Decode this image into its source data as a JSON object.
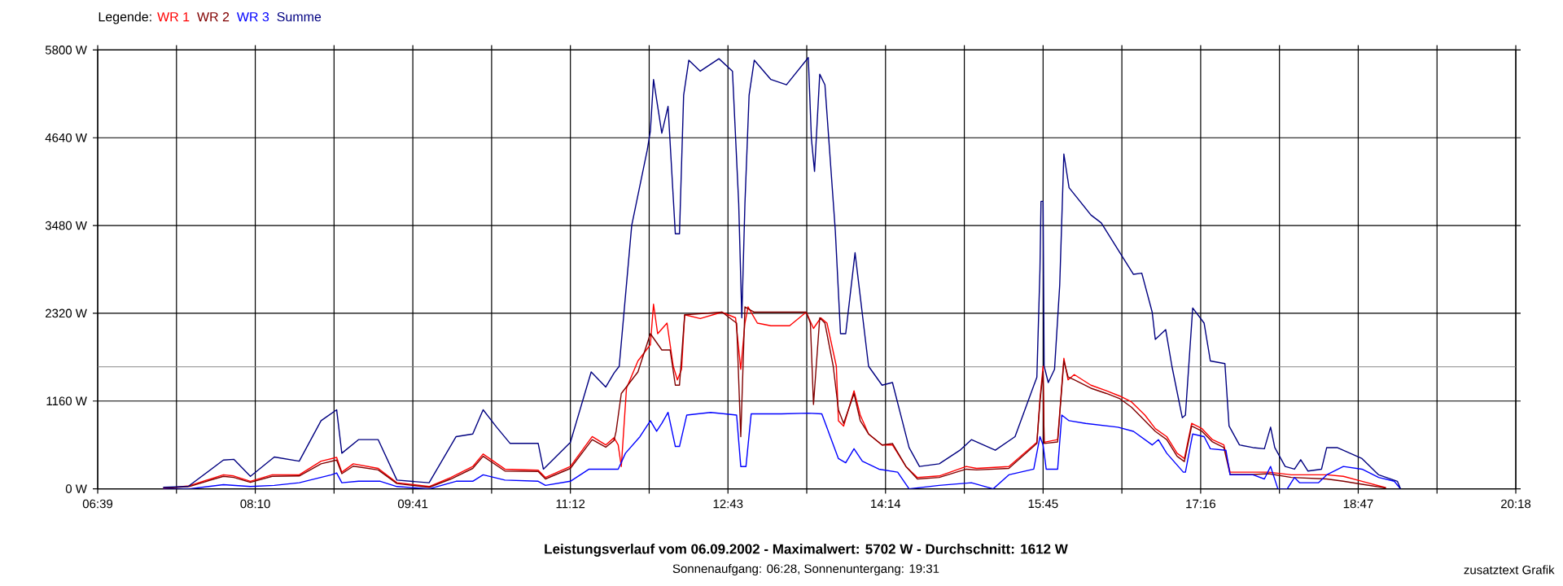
{
  "chart_data": {
    "type": "line",
    "title": "Leistungsverlauf vom 06.09.2002 - Maximalwert: 5702 W - Durchschnitt: 1612 W",
    "subtitle": "Sonnenaufgang: 06:28, Sonnenuntergang: 19:31",
    "annotations": [
      "zusatztext Grafik"
    ],
    "legend_title": "Legende:",
    "legend": "top left",
    "grid": true,
    "marker": "none",
    "line_style": "solid",
    "xlim": [
      6.65,
      20.3
    ],
    "ylim": [
      0,
      5800
    ],
    "xticks": [
      {
        "value": 6.65,
        "label": "06:39"
      },
      {
        "value": 7.4083,
        "label": null
      },
      {
        "value": 8.1667,
        "label": "08:10"
      },
      {
        "value": 8.925,
        "label": null
      },
      {
        "value": 9.6833,
        "label": "09:41"
      },
      {
        "value": 10.4417,
        "label": null
      },
      {
        "value": 11.2,
        "label": "11:12"
      },
      {
        "value": 11.9583,
        "label": null
      },
      {
        "value": 12.7167,
        "label": "12:43"
      },
      {
        "value": 13.475,
        "label": null
      },
      {
        "value": 14.2333,
        "label": "14:14"
      },
      {
        "value": 14.9917,
        "label": null
      },
      {
        "value": 15.75,
        "label": "15:45"
      },
      {
        "value": 16.5083,
        "label": null
      },
      {
        "value": 17.2667,
        "label": "17:16"
      },
      {
        "value": 18.025,
        "label": null
      },
      {
        "value": 18.7833,
        "label": "18:47"
      },
      {
        "value": 19.5417,
        "label": null
      },
      {
        "value": 20.3,
        "label": "20:18"
      }
    ],
    "yticks": [
      {
        "value": 0,
        "label": "0 W"
      },
      {
        "value": 1160,
        "label": "1160 W"
      },
      {
        "value": 2320,
        "label": "2320 W"
      },
      {
        "value": 3480,
        "label": "3480 W"
      },
      {
        "value": 4640,
        "label": "4640 W"
      },
      {
        "value": 5800,
        "label": "5800 W"
      }
    ],
    "ref_lines": [
      {
        "axis": "y",
        "value": 1612,
        "color": "#808080"
      }
    ],
    "series": [
      {
        "name": "WR 1",
        "color": "#ff0000",
        "x": [
          7.28,
          7.53,
          7.86,
          7.96,
          8.12,
          8.33,
          8.59,
          8.8,
          8.95,
          9.0,
          9.11,
          9.35,
          9.53,
          9.84,
          10.05,
          10.26,
          10.36,
          10.57,
          10.89,
          10.96,
          11.2,
          11.41,
          11.54,
          11.62,
          11.66,
          11.69,
          11.74,
          11.85,
          11.97,
          12.0,
          12.04,
          12.13,
          12.19,
          12.23,
          12.27,
          12.3,
          12.45,
          12.66,
          12.79,
          12.84,
          12.88,
          12.91,
          13.0,
          13.13,
          13.31,
          13.47,
          13.54,
          13.61,
          13.67,
          13.76,
          13.78,
          13.83,
          13.93,
          13.99,
          14.07,
          14.2,
          14.3,
          14.43,
          14.54,
          14.75,
          15.01,
          15.11,
          15.42,
          15.69,
          15.72,
          15.75,
          15.76,
          15.89,
          15.95,
          15.99,
          16.05,
          16.21,
          16.36,
          16.49,
          16.6,
          16.73,
          16.83,
          16.94,
          17.04,
          17.11,
          17.18,
          17.28,
          17.38,
          17.49,
          17.55,
          17.77,
          17.92,
          18.14,
          18.48,
          18.64,
          18.82,
          19.05
        ],
        "values": [
          5,
          40,
          185,
          170,
          100,
          185,
          185,
          365,
          415,
          220,
          330,
          270,
          80,
          30,
          150,
          295,
          460,
          260,
          245,
          150,
          295,
          690,
          580,
          675,
          580,
          295,
          1330,
          1690,
          1905,
          2440,
          2050,
          2190,
          1620,
          1440,
          1580,
          2300,
          2250,
          2335,
          2260,
          1580,
          2190,
          2405,
          2190,
          2155,
          2155,
          2335,
          2120,
          2260,
          2190,
          1620,
          900,
          830,
          1295,
          975,
          725,
          580,
          580,
          295,
          150,
          170,
          295,
          270,
          295,
          615,
          1190,
          1620,
          615,
          650,
          1725,
          1440,
          1510,
          1370,
          1295,
          1225,
          1150,
          975,
          795,
          690,
          470,
          400,
          865,
          795,
          650,
          580,
          220,
          220,
          220,
          185,
          185,
          165,
          100,
          15
        ]
      },
      {
        "name": "WR 2",
        "color": "#800000",
        "x": [
          7.28,
          7.53,
          7.86,
          7.96,
          8.12,
          8.33,
          8.59,
          8.8,
          8.95,
          9.0,
          9.11,
          9.35,
          9.53,
          9.84,
          10.05,
          10.26,
          10.36,
          10.57,
          10.89,
          10.96,
          11.2,
          11.41,
          11.54,
          11.62,
          11.64,
          11.69,
          11.85,
          11.97,
          12.08,
          12.16,
          12.21,
          12.25,
          12.3,
          12.66,
          12.8,
          12.84,
          12.88,
          12.97,
          13.23,
          13.47,
          13.51,
          13.54,
          13.6,
          13.65,
          13.73,
          13.78,
          13.83,
          13.93,
          13.99,
          14.07,
          14.2,
          14.3,
          14.43,
          14.54,
          14.75,
          15.01,
          15.11,
          15.42,
          15.69,
          15.72,
          15.75,
          15.76,
          15.89,
          15.95,
          15.99,
          16.05,
          16.21,
          16.36,
          16.49,
          16.6,
          16.73,
          16.83,
          16.94,
          17.04,
          17.11,
          17.18,
          17.28,
          17.38,
          17.49,
          17.55,
          17.77,
          17.92,
          18.14,
          18.48,
          18.64,
          18.82,
          19.05
        ],
        "values": [
          5,
          30,
          165,
          150,
          85,
          165,
          170,
          330,
          380,
          200,
          300,
          250,
          70,
          20,
          130,
          270,
          430,
          235,
          230,
          130,
          270,
          650,
          550,
          640,
          760,
          1260,
          1545,
          2050,
          1835,
          1835,
          1370,
          1370,
          2300,
          2335,
          2190,
          690,
          2405,
          2335,
          2335,
          2335,
          2190,
          1115,
          2260,
          2190,
          1620,
          1045,
          865,
          1260,
          900,
          725,
          580,
          600,
          295,
          130,
          150,
          260,
          250,
          270,
          600,
          1150,
          1550,
          600,
          620,
          1690,
          1480,
          1440,
          1330,
          1260,
          1190,
          1080,
          900,
          760,
          650,
          430,
          360,
          830,
          760,
          620,
          545,
          190,
          190,
          200,
          150,
          130,
          100,
          60,
          10
        ]
      },
      {
        "name": "WR 3",
        "color": "#0000ff",
        "x": [
          7.28,
          7.53,
          7.86,
          8.12,
          8.35,
          8.59,
          8.9,
          8.95,
          9.0,
          9.16,
          9.37,
          9.53,
          9.84,
          10.1,
          10.26,
          10.36,
          10.57,
          10.89,
          10.96,
          11.2,
          11.38,
          11.66,
          11.73,
          11.87,
          11.97,
          12.03,
          12.08,
          12.14,
          12.21,
          12.25,
          12.32,
          12.55,
          12.8,
          12.84,
          12.89,
          12.94,
          13.23,
          13.49,
          13.62,
          13.78,
          13.85,
          13.93,
          14.01,
          14.17,
          14.35,
          14.46,
          14.75,
          15.06,
          15.27,
          15.42,
          15.66,
          15.72,
          15.75,
          15.78,
          15.89,
          15.93,
          16.0,
          16.16,
          16.47,
          16.62,
          16.8,
          16.86,
          16.94,
          17.1,
          17.12,
          17.19,
          17.3,
          17.36,
          17.51,
          17.55,
          17.77,
          17.88,
          17.94,
          18.01,
          18.1,
          18.17,
          18.22,
          18.4,
          18.48,
          18.64,
          18.82,
          18.98,
          19.13,
          19.19
        ],
        "values": [
          0,
          0,
          55,
          30,
          45,
          80,
          185,
          210,
          80,
          100,
          100,
          30,
          0,
          100,
          100,
          185,
          115,
          100,
          45,
          100,
          260,
          260,
          470,
          690,
          900,
          760,
          865,
          1010,
          560,
          560,
          975,
          1010,
          975,
          295,
          295,
          990,
          990,
          1000,
          990,
          400,
          345,
          530,
          365,
          260,
          220,
          0,
          45,
          80,
          0,
          185,
          260,
          690,
          580,
          260,
          260,
          975,
          900,
          865,
          815,
          760,
          580,
          650,
          470,
          220,
          220,
          725,
          690,
          530,
          510,
          185,
          185,
          130,
          295,
          0,
          0,
          150,
          80,
          80,
          185,
          295,
          260,
          150,
          100,
          0
        ]
      },
      {
        "name": "Summe",
        "color": "#000080",
        "x": [
          7.28,
          7.52,
          7.86,
          7.96,
          8.12,
          8.35,
          8.59,
          8.8,
          8.95,
          9.0,
          9.16,
          9.35,
          9.53,
          9.84,
          10.1,
          10.26,
          10.36,
          10.49,
          10.62,
          10.89,
          10.94,
          11.2,
          11.4,
          11.54,
          11.62,
          11.67,
          11.79,
          11.94,
          11.97,
          12.0,
          12.08,
          12.14,
          12.21,
          12.25,
          12.29,
          12.34,
          12.45,
          12.63,
          12.76,
          12.82,
          12.85,
          12.88,
          12.92,
          12.97,
          13.13,
          13.28,
          13.49,
          13.52,
          13.55,
          13.6,
          13.65,
          13.75,
          13.8,
          13.85,
          13.94,
          14.07,
          14.2,
          14.3,
          14.46,
          14.56,
          14.75,
          14.95,
          15.06,
          15.29,
          15.48,
          15.69,
          15.72,
          15.73,
          15.75,
          15.76,
          15.8,
          15.86,
          15.91,
          15.95,
          16.0,
          16.21,
          16.31,
          16.49,
          16.62,
          16.7,
          16.8,
          16.83,
          16.93,
          16.99,
          17.09,
          17.12,
          17.19,
          17.3,
          17.36,
          17.5,
          17.54,
          17.64,
          17.77,
          17.88,
          17.94,
          17.98,
          18.08,
          18.17,
          18.23,
          18.3,
          18.43,
          18.48,
          18.58,
          18.82,
          18.98,
          19.16,
          19.19
        ],
        "values": [
          20,
          30,
          380,
          390,
          165,
          420,
          365,
          900,
          1045,
          470,
          650,
          650,
          115,
          80,
          690,
          725,
          1045,
          815,
          600,
          600,
          260,
          615,
          1545,
          1345,
          1530,
          1620,
          3480,
          4480,
          4730,
          5410,
          4700,
          5055,
          3370,
          3370,
          5200,
          5665,
          5520,
          5685,
          5520,
          3770,
          2260,
          3770,
          5200,
          5665,
          5410,
          5340,
          5700,
          4625,
          4195,
          5480,
          5340,
          3410,
          2050,
          2050,
          3120,
          1620,
          1370,
          1405,
          545,
          295,
          330,
          510,
          650,
          510,
          690,
          1475,
          2905,
          3800,
          3800,
          1620,
          1405,
          1580,
          2690,
          4425,
          3980,
          3620,
          3515,
          3120,
          2835,
          2850,
          2335,
          1975,
          2105,
          1620,
          940,
          975,
          2390,
          2190,
          1690,
          1655,
          830,
          580,
          545,
          530,
          815,
          545,
          295,
          260,
          385,
          235,
          260,
          545,
          545,
          400,
          185,
          100,
          0
        ]
      }
    ]
  }
}
